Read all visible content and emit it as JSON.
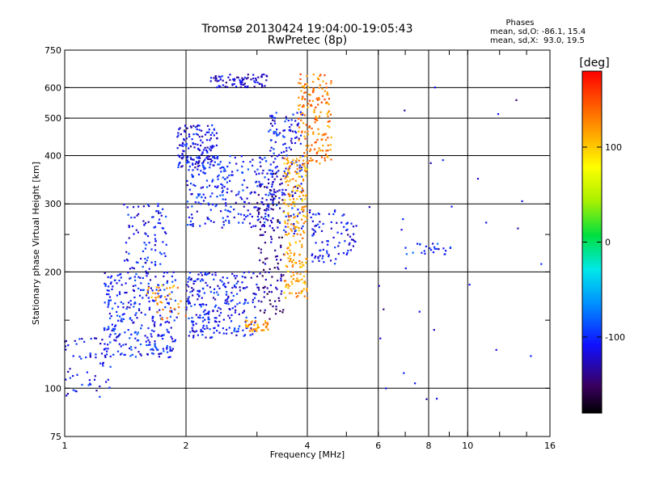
{
  "chart_data": {
    "type": "scatter",
    "title": "Tromsø 20130424 19:04:00-19:05:43",
    "subtitle": "RwPretec (8p)",
    "xlabel": "Frequency [MHz]",
    "ylabel": "Stationary phase Virtual Height [km]",
    "x_scale": "log",
    "y_scale": "log",
    "xlim": [
      1,
      16
    ],
    "ylim": [
      75,
      750
    ],
    "x_ticks": [
      1,
      2,
      4,
      6,
      8,
      10,
      16
    ],
    "x_tick_labels": [
      "1",
      "2",
      "4",
      "6",
      "8",
      "10",
      "16"
    ],
    "x_minor_ticks": [
      3,
      5,
      7,
      9,
      12,
      14
    ],
    "y_ticks": [
      75,
      100,
      200,
      300,
      400,
      500,
      600,
      750
    ],
    "y_tick_labels": [
      "75",
      "100",
      "200",
      "300",
      "400",
      "500",
      "600",
      "750"
    ],
    "y_minor_ticks": [
      150,
      250
    ],
    "x_grid": [
      2,
      4,
      6,
      8,
      10
    ],
    "y_grid": [
      100,
      200,
      300,
      400,
      500,
      600
    ],
    "grid": true,
    "legend": {
      "title": "Phases",
      "line1": "mean, sd,O: -86.1, 15.4",
      "line2": "mean, sd,X:  93.0, 19.5",
      "placement": "top-right"
    },
    "colorbar": {
      "label": "[deg]",
      "range": [
        -180,
        180
      ],
      "ticks": [
        -100,
        0,
        100
      ],
      "tick_labels": [
        "-100",
        "0",
        "100"
      ],
      "colormap": "rainbow",
      "placement": "right"
    },
    "clusters": [
      {
        "x": [
          1.0,
          1.3
        ],
        "y": [
          95,
          135
        ],
        "phase": -110,
        "n": 60
      },
      {
        "x": [
          1.25,
          1.9
        ],
        "y": [
          120,
          200
        ],
        "phase": -105,
        "n": 300
      },
      {
        "x": [
          1.4,
          1.8
        ],
        "y": [
          200,
          300
        ],
        "phase": -110,
        "n": 90
      },
      {
        "x": [
          1.6,
          2.0
        ],
        "y": [
          150,
          190
        ],
        "phase": 120,
        "n": 40
      },
      {
        "x": [
          1.9,
          2.4
        ],
        "y": [
          370,
          480
        ],
        "phase": -115,
        "n": 140
      },
      {
        "x": [
          2.0,
          3.3
        ],
        "y": [
          260,
          400
        ],
        "phase": -105,
        "n": 260
      },
      {
        "x": [
          2.0,
          3.0
        ],
        "y": [
          135,
          200
        ],
        "phase": -110,
        "n": 260
      },
      {
        "x": [
          2.3,
          3.2
        ],
        "y": [
          600,
          650
        ],
        "phase": -120,
        "n": 80
      },
      {
        "x": [
          3.0,
          3.5
        ],
        "y": [
          150,
          360
        ],
        "phase": -140,
        "n": 140
      },
      {
        "x": [
          3.2,
          3.9
        ],
        "y": [
          250,
          520
        ],
        "phase": -110,
        "n": 160
      },
      {
        "x": [
          2.8,
          3.2
        ],
        "y": [
          140,
          150
        ],
        "phase": 120,
        "n": 40
      },
      {
        "x": [
          3.5,
          4.0
        ],
        "y": [
          170,
          400
        ],
        "phase": 115,
        "n": 220
      },
      {
        "x": [
          3.8,
          4.6
        ],
        "y": [
          380,
          650
        ],
        "phase": 130,
        "n": 170
      },
      {
        "x": [
          4.0,
          5.0
        ],
        "y": [
          210,
          290
        ],
        "phase": -110,
        "n": 70
      },
      {
        "x": [
          5.0,
          5.3
        ],
        "y": [
          215,
          270
        ],
        "phase": -120,
        "n": 20
      },
      {
        "x": [
          7.0,
          9.2
        ],
        "y": [
          222,
          238
        ],
        "phase": -100,
        "n": 24
      },
      {
        "x": [
          5.5,
          15.5
        ],
        "y": [
          78,
          620
        ],
        "phase": -120,
        "n": 30
      }
    ]
  }
}
